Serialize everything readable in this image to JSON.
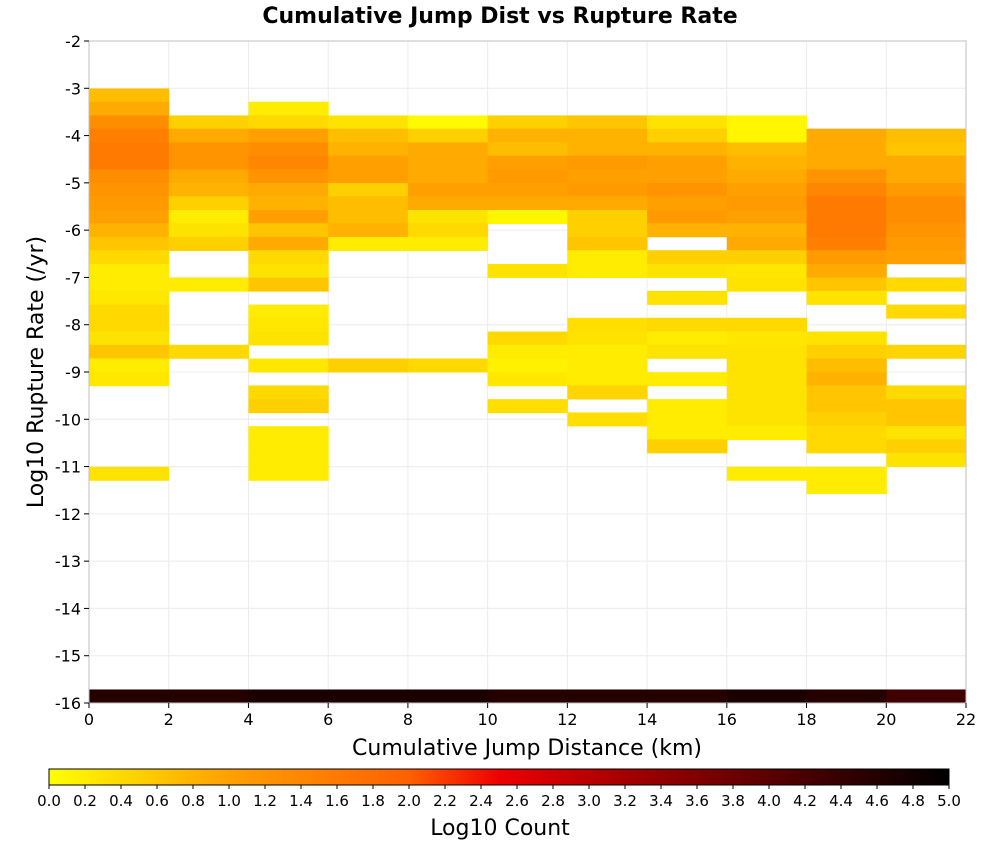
{
  "chart_data": {
    "type": "heatmap",
    "title": "Cumulative Jump Dist vs Rupture Rate",
    "xlabel": "Cumulative Jump Distance (km)",
    "ylabel": "Log10 Rupture Rate (/yr)",
    "colorbar_label": "Log10 Count",
    "xlim": [
      0,
      22
    ],
    "ylim": [
      -16,
      -2
    ],
    "x_ticks": [
      "0",
      "2",
      "4",
      "6",
      "8",
      "10",
      "12",
      "14",
      "16",
      "18",
      "20",
      "22"
    ],
    "y_ticks": [
      "-2",
      "-3",
      "-4",
      "-5",
      "-6",
      "-7",
      "-8",
      "-9",
      "-10",
      "-11",
      "-12",
      "-13",
      "-14",
      "-15",
      "-16"
    ],
    "colorbar_range": [
      0,
      5
    ],
    "colorbar_ticks": [
      "0.0",
      "0.2",
      "0.4",
      "0.6",
      "0.8",
      "1.0",
      "1.2",
      "1.4",
      "1.6",
      "1.8",
      "2.0",
      "2.2",
      "2.4",
      "2.6",
      "2.8",
      "3.0",
      "3.2",
      "3.4",
      "3.6",
      "3.8",
      "4.0",
      "4.2",
      "4.4",
      "4.6",
      "4.8",
      "5.0"
    ],
    "colormap": [
      "#ffff00",
      "#ffa000",
      "#ff6000",
      "#ee0000",
      "#a00000",
      "#5a0000",
      "#000000"
    ],
    "x_bin_width": 2,
    "y_bin_height": 0.286,
    "grid": true,
    "columns": [
      {
        "x0": 0,
        "cells": [
          [
            -3.29,
            0.7
          ],
          [
            -3.57,
            0.9
          ],
          [
            -3.86,
            1.3
          ],
          [
            -4.14,
            1.5
          ],
          [
            -4.43,
            1.6
          ],
          [
            -4.71,
            1.6
          ],
          [
            -5.0,
            1.3
          ],
          [
            -5.29,
            1.2
          ],
          [
            -5.57,
            1.1
          ],
          [
            -5.86,
            1.0
          ],
          [
            -6.14,
            0.8
          ],
          [
            -6.43,
            0.6
          ],
          [
            -6.71,
            0.4
          ],
          [
            -7.0,
            0.2
          ],
          [
            -7.29,
            0.2
          ],
          [
            -7.57,
            0.25
          ],
          [
            -7.86,
            0.4
          ],
          [
            -8.14,
            0.4
          ],
          [
            -8.43,
            0.3
          ],
          [
            -8.71,
            0.6
          ],
          [
            -9.0,
            0.2
          ],
          [
            -9.29,
            0.25
          ],
          [
            -11.29,
            0.3
          ],
          [
            -16.0,
            4.6
          ]
        ]
      },
      {
        "x0": 2,
        "cells": [
          [
            -3.86,
            0.5
          ],
          [
            -4.14,
            0.9
          ],
          [
            -4.43,
            1.2
          ],
          [
            -4.71,
            1.2
          ],
          [
            -5.0,
            0.9
          ],
          [
            -5.29,
            0.8
          ],
          [
            -5.57,
            0.5
          ],
          [
            -5.86,
            0.2
          ],
          [
            -6.14,
            0.3
          ],
          [
            -6.43,
            0.5
          ],
          [
            -7.29,
            0.2
          ],
          [
            -8.71,
            0.4
          ],
          [
            -16.0,
            4.6
          ]
        ]
      },
      {
        "x0": 4,
        "cells": [
          [
            -3.57,
            0.2
          ],
          [
            -3.86,
            0.4
          ],
          [
            -4.14,
            1.0
          ],
          [
            -4.43,
            1.3
          ],
          [
            -4.71,
            1.4
          ],
          [
            -5.0,
            1.2
          ],
          [
            -5.29,
            0.9
          ],
          [
            -5.57,
            0.8
          ],
          [
            -5.86,
            1.0
          ],
          [
            -6.14,
            0.6
          ],
          [
            -6.43,
            0.9
          ],
          [
            -6.71,
            0.4
          ],
          [
            -7.0,
            0.3
          ],
          [
            -7.29,
            0.6
          ],
          [
            -7.86,
            0.2
          ],
          [
            -8.14,
            0.25
          ],
          [
            -8.43,
            0.3
          ],
          [
            -9.0,
            0.25
          ],
          [
            -9.57,
            0.4
          ],
          [
            -9.86,
            0.5
          ],
          [
            -10.43,
            0.2
          ],
          [
            -10.71,
            0.2
          ],
          [
            -11.0,
            0.2
          ],
          [
            -11.29,
            0.2
          ],
          [
            -16.0,
            4.7
          ]
        ]
      },
      {
        "x0": 6,
        "cells": [
          [
            -3.86,
            0.3
          ],
          [
            -4.14,
            0.7
          ],
          [
            -4.43,
            0.8
          ],
          [
            -4.71,
            1.0
          ],
          [
            -5.0,
            1.0
          ],
          [
            -5.29,
            0.5
          ],
          [
            -5.57,
            0.7
          ],
          [
            -5.86,
            0.7
          ],
          [
            -6.14,
            0.8
          ],
          [
            -6.43,
            0.2
          ],
          [
            -9.0,
            0.5
          ],
          [
            -16.0,
            4.7
          ]
        ]
      },
      {
        "x0": 8,
        "cells": [
          [
            -3.86,
            0.05
          ],
          [
            -4.14,
            0.5
          ],
          [
            -4.43,
            0.9
          ],
          [
            -4.71,
            0.9
          ],
          [
            -5.0,
            0.9
          ],
          [
            -5.29,
            1.0
          ],
          [
            -5.57,
            0.9
          ],
          [
            -5.86,
            0.3
          ],
          [
            -6.14,
            0.4
          ],
          [
            -6.43,
            0.2
          ],
          [
            -9.0,
            0.4
          ],
          [
            -16.0,
            4.7
          ]
        ]
      },
      {
        "x0": 10,
        "cells": [
          [
            -3.86,
            0.5
          ],
          [
            -4.14,
            0.8
          ],
          [
            -4.43,
            0.7
          ],
          [
            -4.71,
            1.0
          ],
          [
            -5.0,
            1.1
          ],
          [
            -5.29,
            1.0
          ],
          [
            -5.57,
            0.9
          ],
          [
            -5.86,
            0.1
          ],
          [
            -7.0,
            0.3
          ],
          [
            -8.43,
            0.4
          ],
          [
            -8.71,
            0.2
          ],
          [
            -9.0,
            0.15
          ],
          [
            -9.29,
            0.25
          ],
          [
            -9.86,
            0.35
          ],
          [
            -16.0,
            4.6
          ]
        ]
      },
      {
        "x0": 12,
        "cells": [
          [
            -3.86,
            0.6
          ],
          [
            -4.14,
            0.8
          ],
          [
            -4.43,
            0.8
          ],
          [
            -4.71,
            1.1
          ],
          [
            -5.0,
            1.0
          ],
          [
            -5.29,
            1.1
          ],
          [
            -5.57,
            0.9
          ],
          [
            -5.86,
            0.5
          ],
          [
            -6.14,
            0.5
          ],
          [
            -6.43,
            0.6
          ],
          [
            -6.71,
            0.2
          ],
          [
            -7.0,
            0.2
          ],
          [
            -8.14,
            0.35
          ],
          [
            -8.43,
            0.3
          ],
          [
            -8.71,
            0.2
          ],
          [
            -9.0,
            0.2
          ],
          [
            -9.29,
            0.2
          ],
          [
            -9.57,
            0.45
          ],
          [
            -10.14,
            0.35
          ],
          [
            -16.0,
            4.6
          ]
        ]
      },
      {
        "x0": 14,
        "cells": [
          [
            -3.86,
            0.3
          ],
          [
            -4.14,
            0.5
          ],
          [
            -4.43,
            0.8
          ],
          [
            -4.71,
            1.0
          ],
          [
            -5.0,
            1.0
          ],
          [
            -5.29,
            1.2
          ],
          [
            -5.57,
            1.0
          ],
          [
            -5.86,
            1.1
          ],
          [
            -6.14,
            0.8
          ],
          [
            -6.71,
            0.5
          ],
          [
            -7.0,
            0.3
          ],
          [
            -7.57,
            0.3
          ],
          [
            -8.14,
            0.4
          ],
          [
            -8.43,
            0.2
          ],
          [
            -8.71,
            0.3
          ],
          [
            -9.29,
            0.2
          ],
          [
            -9.86,
            0.2
          ],
          [
            -10.14,
            0.2
          ],
          [
            -10.43,
            0.2
          ],
          [
            -10.71,
            0.5
          ],
          [
            -16.0,
            4.6
          ]
        ]
      },
      {
        "x0": 16,
        "cells": [
          [
            -3.86,
            0.1
          ],
          [
            -4.14,
            0.1
          ],
          [
            -4.43,
            0.7
          ],
          [
            -4.71,
            0.8
          ],
          [
            -5.0,
            0.9
          ],
          [
            -5.29,
            1.0
          ],
          [
            -5.57,
            1.1
          ],
          [
            -5.86,
            1.0
          ],
          [
            -6.14,
            0.8
          ],
          [
            -6.43,
            0.9
          ],
          [
            -6.71,
            0.5
          ],
          [
            -7.0,
            0.25
          ],
          [
            -7.29,
            0.3
          ],
          [
            -8.14,
            0.4
          ],
          [
            -8.43,
            0.25
          ],
          [
            -8.71,
            0.3
          ],
          [
            -9.0,
            0.3
          ],
          [
            -9.29,
            0.3
          ],
          [
            -9.57,
            0.3
          ],
          [
            -9.86,
            0.3
          ],
          [
            -10.14,
            0.3
          ],
          [
            -10.43,
            0.2
          ],
          [
            -11.29,
            0.2
          ],
          [
            -16.0,
            4.7
          ]
        ]
      },
      {
        "x0": 18,
        "cells": [
          [
            -4.14,
            0.9
          ],
          [
            -4.43,
            0.9
          ],
          [
            -4.71,
            0.9
          ],
          [
            -5.0,
            1.2
          ],
          [
            -5.29,
            1.4
          ],
          [
            -5.57,
            1.6
          ],
          [
            -5.86,
            1.6
          ],
          [
            -6.14,
            1.6
          ],
          [
            -6.43,
            1.5
          ],
          [
            -6.71,
            1.1
          ],
          [
            -7.0,
            0.9
          ],
          [
            -7.29,
            0.6
          ],
          [
            -7.57,
            0.3
          ],
          [
            -8.43,
            0.3
          ],
          [
            -8.71,
            0.5
          ],
          [
            -9.0,
            0.7
          ],
          [
            -9.29,
            0.8
          ],
          [
            -9.57,
            0.6
          ],
          [
            -9.86,
            0.6
          ],
          [
            -10.14,
            0.5
          ],
          [
            -10.43,
            0.4
          ],
          [
            -10.71,
            0.4
          ],
          [
            -11.29,
            0.2
          ],
          [
            -11.57,
            0.2
          ],
          [
            -16.0,
            4.6
          ]
        ]
      },
      {
        "x0": 20,
        "cells": [
          [
            -4.14,
            0.7
          ],
          [
            -4.43,
            0.6
          ],
          [
            -4.71,
            0.9
          ],
          [
            -5.0,
            0.9
          ],
          [
            -5.29,
            1.1
          ],
          [
            -5.57,
            1.3
          ],
          [
            -5.86,
            1.3
          ],
          [
            -6.14,
            1.2
          ],
          [
            -6.43,
            1.1
          ],
          [
            -6.71,
            1.0
          ],
          [
            -7.29,
            0.4
          ],
          [
            -7.86,
            0.4
          ],
          [
            -8.71,
            0.45
          ],
          [
            -9.57,
            0.4
          ],
          [
            -9.86,
            0.6
          ],
          [
            -10.14,
            0.6
          ],
          [
            -10.43,
            0.3
          ],
          [
            -10.71,
            0.5
          ],
          [
            -11.0,
            0.3
          ],
          [
            -16.0,
            4.3
          ]
        ]
      }
    ]
  }
}
